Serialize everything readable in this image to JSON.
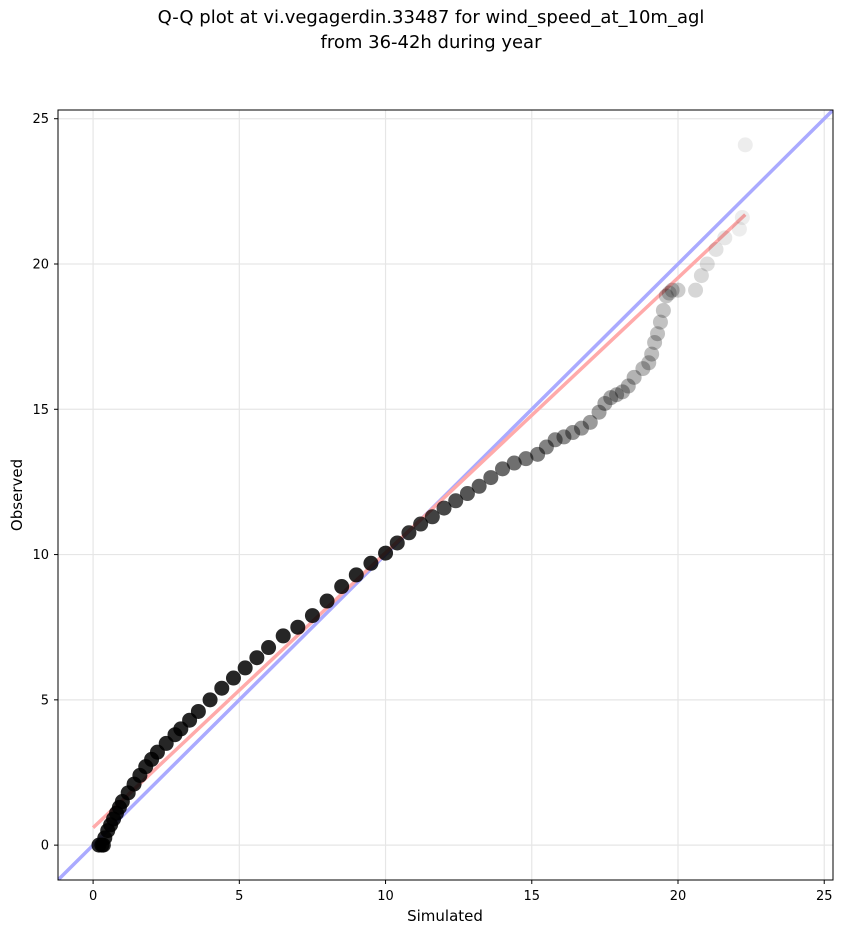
{
  "chart_data": {
    "type": "scatter",
    "title_lines": [
      "Q-Q plot at vi.vegagerdin.33487 for wind_speed_at_10m_agl",
      "from 36-42h during year"
    ],
    "xlabel": "Simulated",
    "ylabel": "Observed",
    "xlim": [
      -1.2,
      25.3
    ],
    "ylim": [
      -1.2,
      25.3
    ],
    "xticks": [
      0,
      5,
      10,
      15,
      20,
      25
    ],
    "yticks": [
      0,
      5,
      10,
      15,
      20,
      25
    ],
    "grid": true,
    "reference_line": {
      "color": "#aaaaff",
      "from": [
        -1.2,
        -1.2
      ],
      "to": [
        25.3,
        25.3
      ]
    },
    "fit_line": {
      "color": "#ffaaaa",
      "from": [
        0.0,
        0.6
      ],
      "to": [
        22.3,
        21.7
      ]
    },
    "point_color": "#000000",
    "series": [
      {
        "x": [
          0.2,
          0.3,
          0.35,
          0.4,
          0.5,
          0.6,
          0.7,
          0.8,
          0.9,
          1.0,
          1.2,
          1.4,
          1.6,
          1.8,
          2.0,
          2.2,
          2.5,
          2.8,
          3.0,
          3.3,
          3.6,
          4.0,
          4.4,
          4.8,
          5.2,
          5.6,
          6.0,
          6.5,
          7.0,
          7.5,
          8.0,
          8.5,
          9.0,
          9.5,
          10.0,
          10.4,
          10.8,
          11.2,
          11.6,
          12.0,
          12.4,
          12.8,
          13.2,
          13.6,
          14.0,
          14.4,
          14.8,
          15.2,
          15.5,
          15.8,
          16.1,
          16.4,
          16.7,
          17.0,
          17.3,
          17.5,
          17.7,
          17.9,
          18.1,
          18.3,
          18.5,
          18.8,
          19.0,
          19.1,
          19.2,
          19.3,
          19.4,
          19.5,
          19.6,
          19.7,
          19.8,
          20.0,
          20.6,
          20.8,
          21.0,
          21.3,
          21.6,
          22.1,
          22.2,
          22.3
        ],
        "y": [
          0.0,
          0.0,
          0.0,
          0.25,
          0.5,
          0.7,
          0.9,
          1.1,
          1.3,
          1.5,
          1.8,
          2.1,
          2.4,
          2.7,
          2.95,
          3.2,
          3.5,
          3.8,
          4.0,
          4.3,
          4.6,
          5.0,
          5.4,
          5.75,
          6.1,
          6.45,
          6.8,
          7.2,
          7.5,
          7.9,
          8.4,
          8.9,
          9.3,
          9.7,
          10.05,
          10.4,
          10.75,
          11.05,
          11.3,
          11.6,
          11.85,
          12.1,
          12.35,
          12.65,
          12.95,
          13.15,
          13.3,
          13.45,
          13.7,
          13.95,
          14.05,
          14.2,
          14.35,
          14.55,
          14.9,
          15.2,
          15.4,
          15.5,
          15.6,
          15.8,
          16.1,
          16.4,
          16.6,
          16.9,
          17.3,
          17.6,
          18.0,
          18.4,
          18.9,
          19.0,
          19.1,
          19.1,
          19.1,
          19.6,
          20.0,
          20.5,
          20.9,
          21.2,
          21.6,
          24.1
        ]
      }
    ]
  }
}
